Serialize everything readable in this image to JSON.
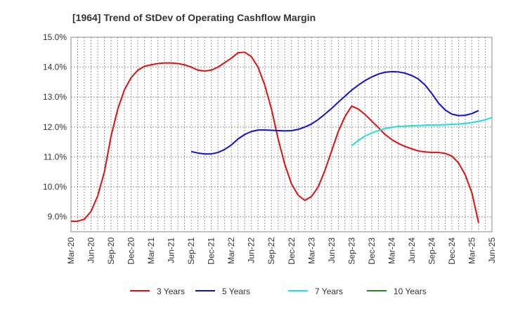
{
  "chart_data": {
    "type": "line",
    "title": "[1964]  Trend of StDev of Operating Cashflow Margin",
    "xlabel": "",
    "ylabel": "",
    "x_ticks": [
      "Mar-20",
      "Jun-20",
      "Sep-20",
      "Dec-20",
      "Mar-21",
      "Jun-21",
      "Sep-21",
      "Dec-21",
      "Mar-22",
      "Jun-22",
      "Sep-22",
      "Dec-22",
      "Mar-23",
      "Jun-23",
      "Sep-23",
      "Dec-23",
      "Mar-24",
      "Jun-24",
      "Sep-24",
      "Dec-24",
      "Mar-25",
      "Jun-25"
    ],
    "y_ticks": [
      "9.0%",
      "10.0%",
      "11.0%",
      "12.0%",
      "13.0%",
      "14.0%",
      "15.0%"
    ],
    "ylim": [
      8.5,
      15.0
    ],
    "y_tick_values": [
      9.0,
      10.0,
      11.0,
      12.0,
      13.0,
      14.0,
      15.0
    ],
    "grid": true,
    "legend_position": "bottom",
    "series": [
      {
        "name": "3 Years",
        "color": "#dd1111",
        "start_month_index": 0,
        "values": [
          8.85,
          8.85,
          8.92,
          9.18,
          9.7,
          10.5,
          11.7,
          12.6,
          13.25,
          13.65,
          13.9,
          14.03,
          14.08,
          14.12,
          14.14,
          14.14,
          14.12,
          14.08,
          14.0,
          13.9,
          13.87,
          13.9,
          14.0,
          14.15,
          14.3,
          14.48,
          14.5,
          14.35,
          14.0,
          13.4,
          12.6,
          11.6,
          10.75,
          10.1,
          9.72,
          9.55,
          9.68,
          10.0,
          10.55,
          11.2,
          11.85,
          12.35,
          12.7,
          12.6,
          12.42,
          12.2,
          11.98,
          11.75,
          11.58,
          11.45,
          11.35,
          11.27,
          11.2,
          11.17,
          11.15,
          11.15,
          11.12,
          11.03,
          10.8,
          10.4,
          9.8,
          8.8
        ]
      },
      {
        "name": "5 Years",
        "color": "#1111cc",
        "start_month_index": 18,
        "values": [
          11.18,
          11.13,
          11.1,
          11.1,
          11.15,
          11.25,
          11.4,
          11.6,
          11.75,
          11.85,
          11.9,
          11.9,
          11.89,
          11.88,
          11.87,
          11.88,
          11.92,
          12.0,
          12.1,
          12.25,
          12.43,
          12.62,
          12.83,
          13.03,
          13.23,
          13.4,
          13.55,
          13.67,
          13.77,
          13.83,
          13.85,
          13.84,
          13.8,
          13.72,
          13.6,
          13.4,
          13.12,
          12.8,
          12.57,
          12.43,
          12.38,
          12.39,
          12.45,
          12.55
        ]
      },
      {
        "name": "7 Years",
        "color": "#22dddd",
        "start_month_index": 42,
        "values": [
          11.38,
          11.55,
          11.7,
          11.8,
          11.88,
          11.95,
          11.99,
          12.02,
          12.03,
          12.04,
          12.05,
          12.06,
          12.07,
          12.07,
          12.08,
          12.09,
          12.1,
          12.12,
          12.15,
          12.19,
          12.24,
          12.32
        ]
      },
      {
        "name": "10 Years",
        "color": "#228822",
        "start_month_index": 0,
        "values": []
      }
    ]
  }
}
